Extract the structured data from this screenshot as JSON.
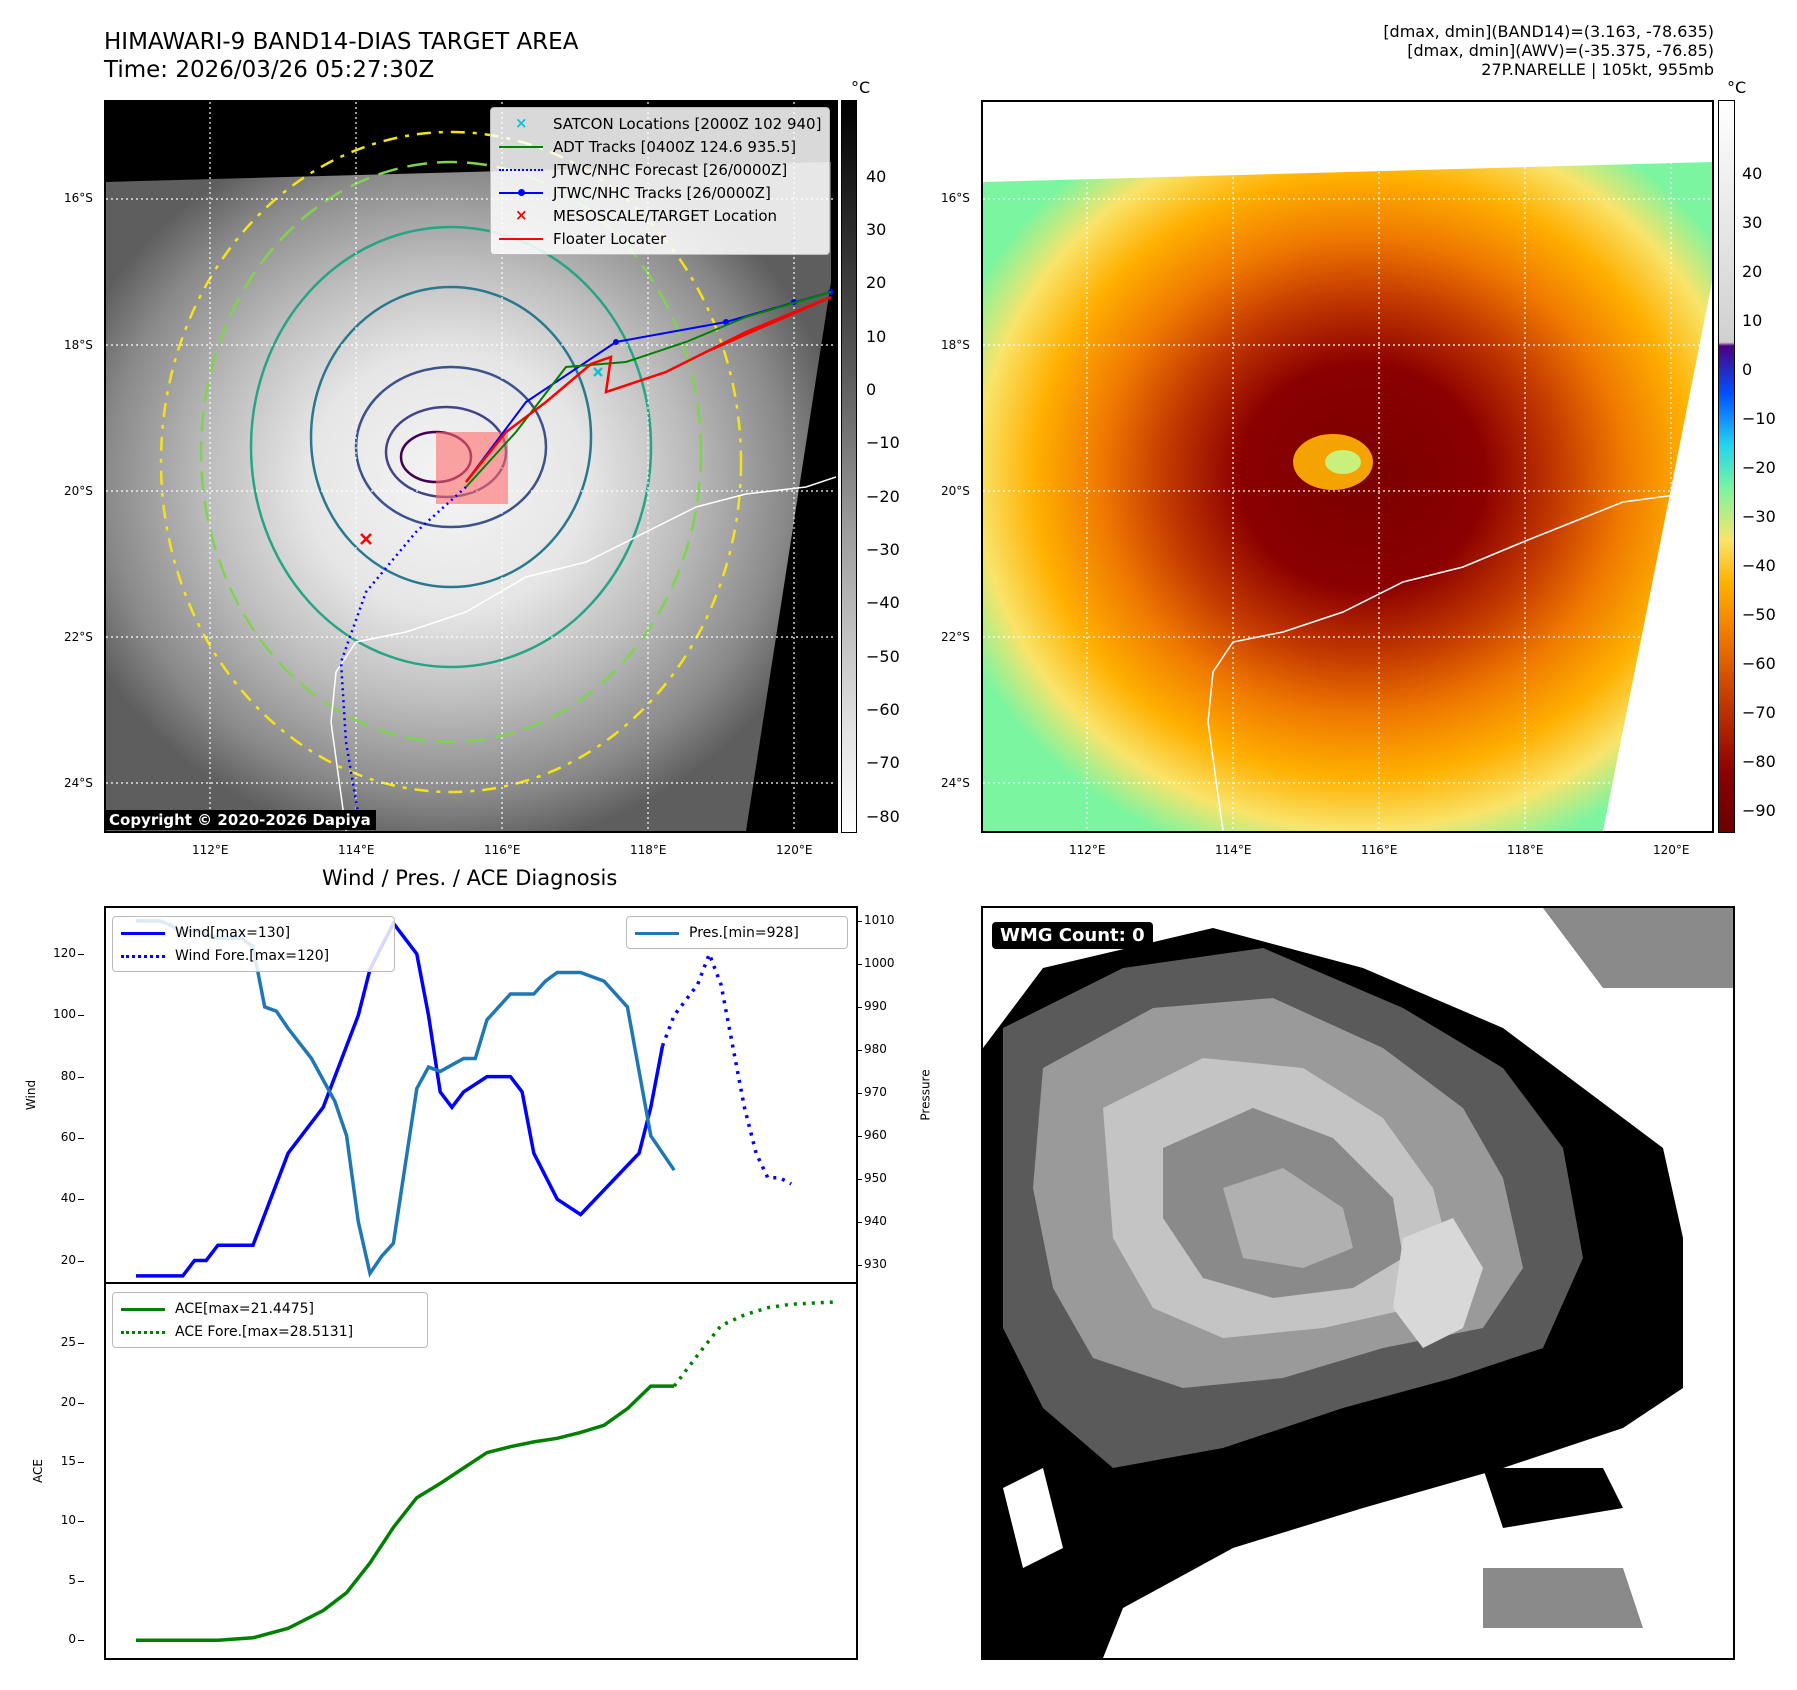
{
  "header": {
    "title_line1": "HIMAWARI-9 BAND14-DIAS TARGET AREA",
    "title_line2": "Time: 2026/03/26 05:27:30Z",
    "info_line1": "[dmax, dmin](BAND14)=(3.163, -78.635)",
    "info_line2": "[dmax, dmin](AWV)=(-35.375, -76.85)",
    "info_line3": "27P.NARELLE | 105kt, 955mb"
  },
  "map": {
    "lat_ticks": [
      "16°S",
      "18°S",
      "20°S",
      "22°S",
      "24°S"
    ],
    "lon_ticks": [
      "112°E",
      "114°E",
      "116°E",
      "118°E",
      "120°E"
    ],
    "copyright": "Copyright © 2020-2026 Dapiya",
    "colorbar_unit": "°C",
    "left_colorbar_ticks": [
      "40",
      "30",
      "20",
      "10",
      "0",
      "−10",
      "−20",
      "−30",
      "−40",
      "−50",
      "−60",
      "−70",
      "−80"
    ],
    "right_colorbar_ticks": [
      "40",
      "30",
      "20",
      "10",
      "0",
      "−10",
      "−20",
      "−30",
      "−40",
      "−50",
      "−60",
      "−70",
      "−80",
      "−90"
    ],
    "legend": [
      {
        "label": "SATCON Locations [2000Z 102 940]",
        "color": "#17becf"
      },
      {
        "label": "ADT Tracks [0400Z 124.6 935.5]",
        "color": "#008000"
      },
      {
        "label": "JTWC/NHC Forecast [26/0000Z]",
        "color": "#0000ff"
      },
      {
        "label": "JTWC/NHC Tracks [26/0000Z]",
        "color": "#0000ff"
      },
      {
        "label": "MESOSCALE/TARGET Location",
        "color": "#ff0000"
      },
      {
        "label": "Floater Locater",
        "color": "#ff0000"
      }
    ]
  },
  "wmg": {
    "label": "WMG Count: 0"
  },
  "chart_data": [
    {
      "type": "line",
      "title": "Wind / Pres. / ACE Diagnosis",
      "ylabel": "Wind",
      "y2label": "Pressure",
      "ylim": [
        13,
        135
      ],
      "y2lim": [
        926,
        1013
      ],
      "yticks": [
        20,
        40,
        60,
        80,
        100,
        120
      ],
      "y2ticks": [
        930,
        940,
        950,
        960,
        970,
        980,
        990,
        1000,
        1010
      ],
      "series": [
        {
          "name": "Wind[max=130]",
          "axis": "left",
          "style": "solid",
          "color": "#0000ff",
          "x": [
            0,
            3,
            4,
            5,
            6,
            7,
            9,
            10,
            13,
            16,
            19,
            20,
            22,
            24,
            25,
            26,
            27,
            28,
            30,
            32,
            33,
            34,
            36,
            38,
            43,
            44,
            45
          ],
          "values": [
            15,
            15,
            15,
            20,
            20,
            25,
            25,
            25,
            55,
            70,
            100,
            115,
            130,
            120,
            100,
            75,
            70,
            75,
            80,
            80,
            75,
            55,
            40,
            35,
            55,
            70,
            90
          ]
        },
        {
          "name": "Wind Fore.[max=120]",
          "axis": "left",
          "style": "dotted",
          "color": "#0000ff",
          "x": [
            45,
            46,
            47,
            48,
            49,
            50,
            51,
            52,
            53,
            54,
            55,
            56
          ],
          "values": [
            90,
            100,
            105,
            110,
            120,
            110,
            90,
            70,
            55,
            47,
            47,
            45
          ]
        },
        {
          "name": "Pres.[min=928]",
          "axis": "right",
          "style": "solid",
          "color": "#1f77b4",
          "x": [
            0,
            2,
            3,
            4,
            5,
            6,
            7,
            8,
            9,
            10,
            11,
            12,
            13,
            15,
            16,
            17,
            18,
            19,
            20,
            21,
            22,
            23,
            24,
            25,
            26,
            28,
            29,
            30,
            31,
            32,
            34,
            35,
            36,
            38,
            40,
            42,
            44,
            46
          ],
          "values": [
            1010,
            1010,
            1009,
            1007,
            1008,
            1007,
            1006,
            1006,
            1006,
            1004,
            990,
            989,
            985,
            978,
            973,
            968,
            960,
            940,
            928,
            932,
            935,
            953,
            971,
            976,
            975,
            978,
            978,
            987,
            990,
            993,
            993,
            996,
            998,
            998,
            996,
            990,
            960,
            952
          ]
        }
      ]
    },
    {
      "type": "line",
      "ylabel": "ACE",
      "ylim": [
        -1.5,
        30
      ],
      "yticks": [
        0,
        5,
        10,
        15,
        20,
        25
      ],
      "series": [
        {
          "name": "ACE[max=21.4475]",
          "style": "solid",
          "color": "#008000",
          "x": [
            0,
            4,
            7,
            10,
            13,
            16,
            18,
            20,
            22,
            24,
            26,
            28,
            30,
            32,
            34,
            36,
            38,
            40,
            42,
            44,
            46
          ],
          "values": [
            0,
            0,
            0,
            0.2,
            1.0,
            2.5,
            4.0,
            6.5,
            9.5,
            12,
            13.2,
            14.5,
            15.8,
            16.3,
            16.7,
            17.0,
            17.5,
            18.1,
            19.5,
            21.4,
            21.4
          ]
        },
        {
          "name": "ACE Fore.[max=28.5131]",
          "style": "dotted",
          "color": "#008000",
          "x": [
            46,
            48,
            50,
            52,
            54,
            56,
            58,
            60
          ],
          "values": [
            21.4,
            24.0,
            26.5,
            27.4,
            28.0,
            28.3,
            28.4,
            28.5
          ]
        }
      ]
    }
  ]
}
